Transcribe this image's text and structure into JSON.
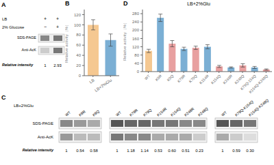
{
  "chart_data": [
    {
      "type": "table",
      "annotations": [
        "A"
      ],
      "rows": [
        {
          "label": "LB",
          "cells": [
            "+",
            "+"
          ]
        },
        {
          "label": "2% Glucose",
          "cells": [
            "−",
            "+"
          ]
        }
      ],
      "band_rows": [
        "SDS-PAGE",
        "Anti-AcK"
      ],
      "band_colors": [
        [
          "#888888",
          "#777777"
        ],
        [
          "#cccccc",
          "#777777"
        ]
      ],
      "rel_label": "Relative intensity",
      "rel_values": [
        "1",
        "2.93"
      ]
    },
    {
      "type": "bar",
      "annotations": [
        "B"
      ],
      "categories": [
        "LB",
        "LB+2%Glu"
      ],
      "values": [
        100,
        70
      ],
      "errors": [
        10,
        12
      ],
      "colors": [
        "#F5C891",
        "#7BAFD4"
      ],
      "ylabel": "Relative activity（%）",
      "ylim": [
        0,
        130
      ],
      "yticks": [
        0,
        20,
        40,
        60,
        80,
        100,
        120
      ]
    },
    {
      "type": "bar",
      "annotations": [
        "D"
      ],
      "title": "LB+2%Glu",
      "categories": [
        "WT",
        "K9R",
        "K9Q",
        "K79R",
        "K79Q",
        "K154R",
        "K154Q",
        "K248R",
        "K248Q",
        "K79Q-154Q",
        "K154Q-K248Q"
      ],
      "values": [
        100,
        260,
        135,
        110,
        115,
        120,
        25,
        20,
        30,
        20,
        10
      ],
      "errors": [
        8,
        18,
        15,
        8,
        8,
        10,
        5,
        3,
        8,
        5,
        3
      ],
      "colors": [
        "#F5C891",
        "#7BAFD4",
        "#E8A0A0",
        "#7BAFD4",
        "#E8A0A0",
        "#7BAFD4",
        "#E8A0A0",
        "#7BAFD4",
        "#E8A0A0",
        "#7BAFD4",
        "#E8A0A0"
      ],
      "ylabel": "Relative activity（%）",
      "ylim": [
        0,
        300
      ],
      "yticks": [
        0,
        40,
        80,
        120,
        160,
        200,
        240,
        280
      ]
    },
    {
      "type": "table",
      "annotations": [
        "C"
      ],
      "header": "LB+2%Glu",
      "band_rows": [
        "SDS-PAGE",
        "Anti-AcK"
      ],
      "rel_label": "Relative intensity",
      "groups": [
        {
          "labels": [
            "WT",
            "K9R",
            "K9Q"
          ],
          "sds_colors": [
            "#888888",
            "#999999",
            "#aaaaaa"
          ],
          "ack_colors": [
            "#999999",
            "#bbbbbb",
            "#bbbbbb"
          ],
          "rel_values": [
            "1",
            "0.54",
            "0.58"
          ]
        },
        {
          "labels": [
            "WT",
            "K79R",
            "K79Q",
            "K154R",
            "K154Q",
            "K248R",
            "K248Q"
          ],
          "sds_colors": [
            "#555555",
            "#666666",
            "#666666",
            "#777777",
            "#777777",
            "#888888",
            "#888888"
          ],
          "ack_colors": [
            "#777777",
            "#888888",
            "#888888",
            "#aaaaaa",
            "#aaaaaa",
            "#aaaaaa",
            "#cccccc"
          ],
          "rel_values": [
            "1",
            "1.18",
            "1.14",
            "0.53",
            "0.60",
            "0.51",
            "0.23"
          ]
        },
        {
          "labels": [
            "WT",
            "K79Q-K154Q",
            "K154Q-K248Q"
          ],
          "sds_colors": [
            "#555555",
            "#666666",
            "#777777"
          ],
          "ack_colors": [
            "#aaaaaa",
            "#cccccc",
            "#dddddd"
          ],
          "rel_values": [
            "1",
            "0.59",
            "0.30"
          ]
        }
      ]
    }
  ]
}
